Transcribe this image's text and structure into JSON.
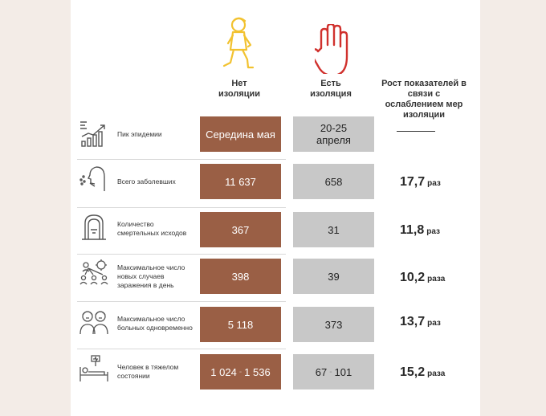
{
  "headers": {
    "no_isolation": "Нет изоляции",
    "isolation": "Есть изоляция",
    "growth": "Рост показателей в связи с ослаблением мер изоляции"
  },
  "rows": [
    {
      "label": "Пик эпидемии",
      "no_iso": "Середина мая",
      "iso": "20-25 апреля",
      "ratio": "",
      "unit": "",
      "icon": "growth-chart-icon"
    },
    {
      "label": "Всего заболевших",
      "no_iso": "11 637",
      "iso": "658",
      "ratio": "17,7",
      "unit": "раз",
      "icon": "sneezing-person-icon"
    },
    {
      "label": "Количество смертельных исходов",
      "no_iso": "367",
      "iso": "31",
      "ratio": "11,8",
      "unit": "раз",
      "icon": "gravestone-icon"
    },
    {
      "label": "Максимальное число новых случаев заражения в день",
      "no_iso": "398",
      "iso": "39",
      "ratio": "10,2",
      "unit": "раза",
      "icon": "virus-spread-icon"
    },
    {
      "label": "Максимальное число больных одновременно",
      "no_iso": "5 118",
      "iso": "373",
      "ratio": "13,7",
      "unit": "раз",
      "icon": "sick-people-icon"
    },
    {
      "label": "Человек в тяжелом состоянии",
      "no_iso": [
        "1 024",
        "1 536"
      ],
      "iso": [
        "67",
        "101"
      ],
      "ratio": "15,2",
      "unit": "раза",
      "icon": "hospital-bed-icon"
    }
  ],
  "range_separator": "-",
  "colors": {
    "brown": "#9a5f45",
    "grey": "#c8c8c8",
    "icon_yellow": "#f2c230",
    "icon_red": "#d0312d"
  }
}
